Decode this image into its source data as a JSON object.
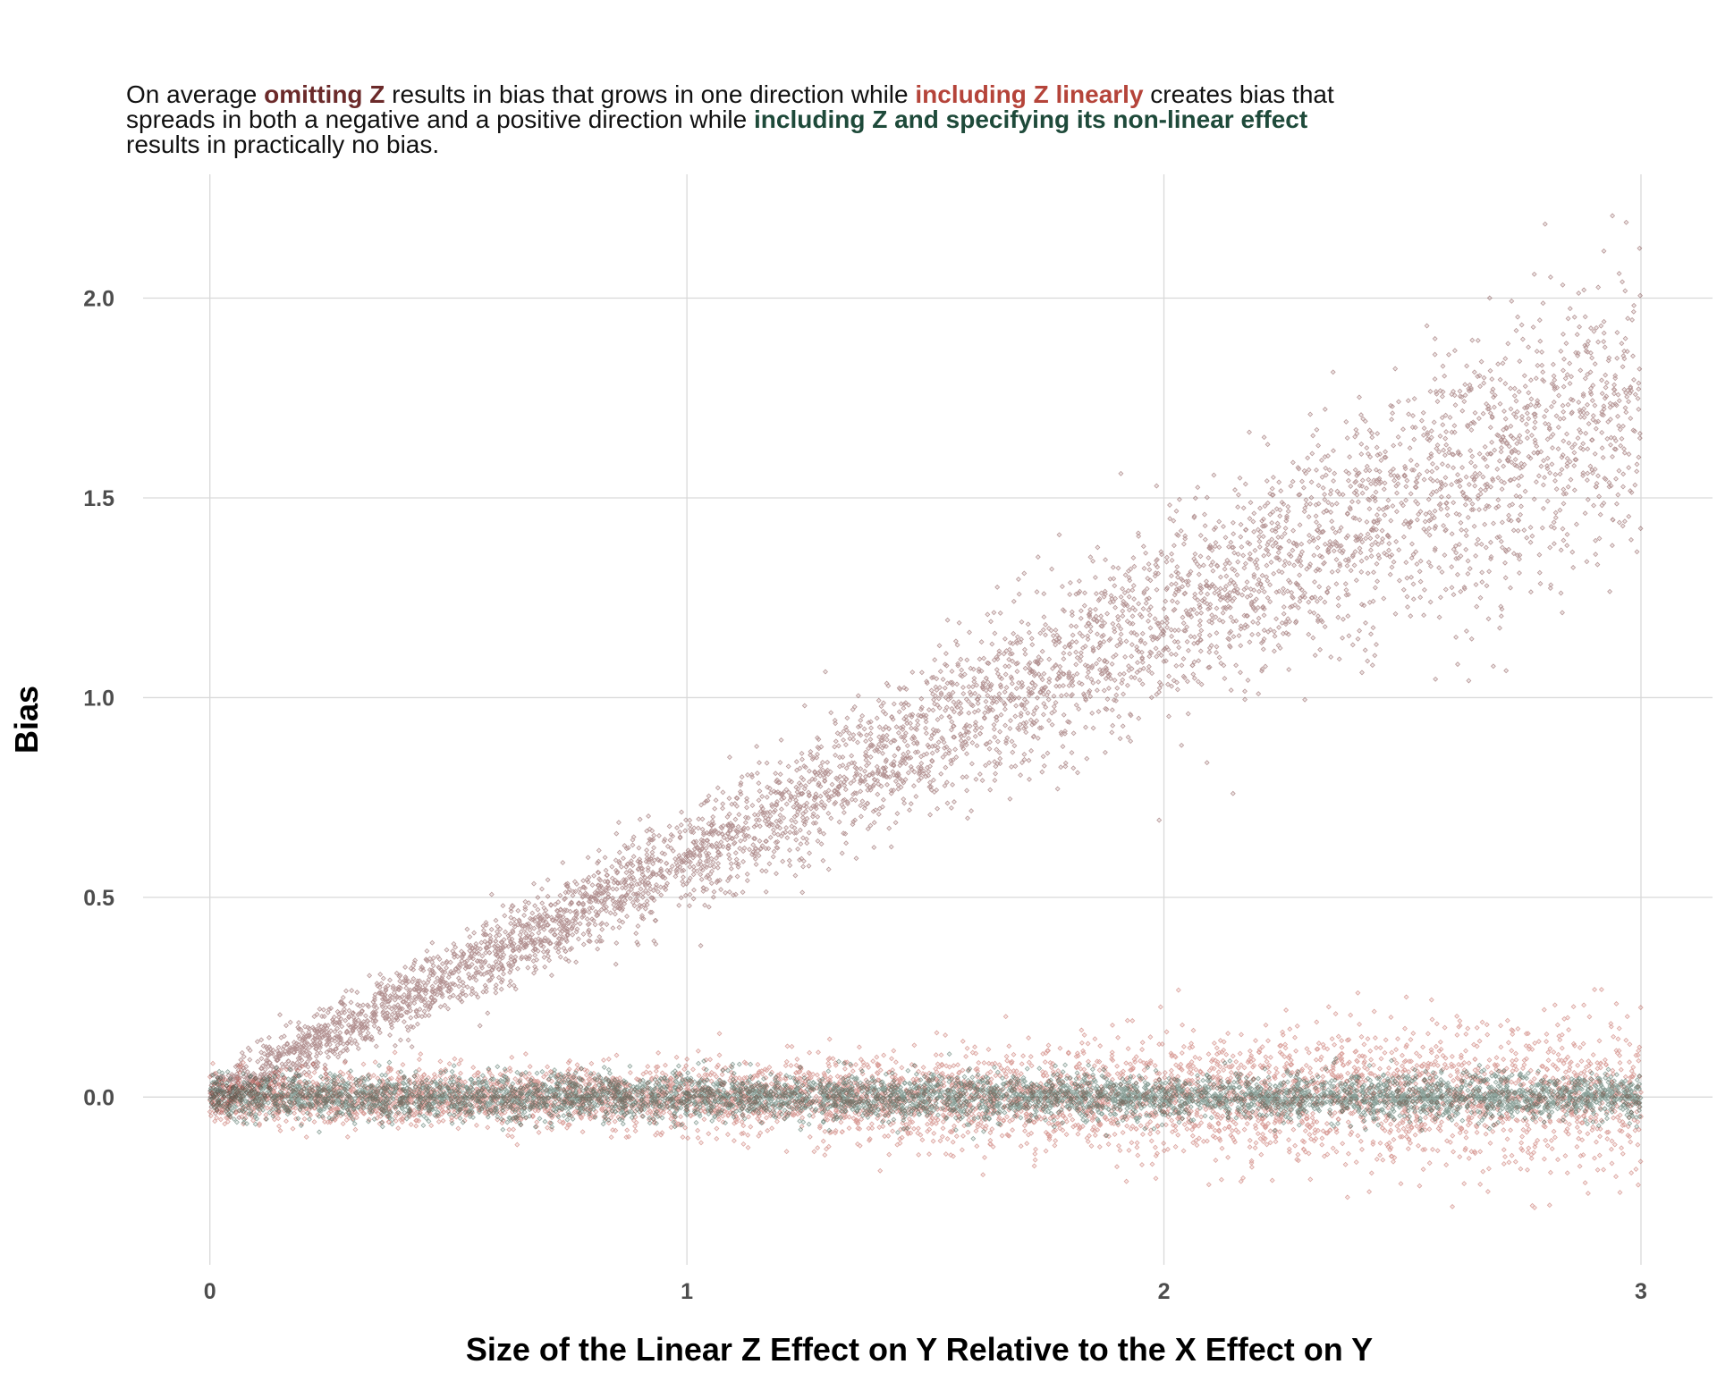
{
  "chart_data": {
    "type": "scatter",
    "subtitle_segments": [
      {
        "text": "On average ",
        "style": "plain"
      },
      {
        "text": "omitting Z",
        "style": "omit"
      },
      {
        "text": " results in bias that grows in one direction while ",
        "style": "plain"
      },
      {
        "text": "including Z linearly",
        "style": "linear"
      },
      {
        "text": " creates bias that spreads in both a negative and a positive direction while ",
        "style": "plain"
      },
      {
        "text": "including Z and specifying its non-linear effect",
        "style": "nonlinear"
      },
      {
        "text": " results in practically no bias.",
        "style": "plain"
      }
    ],
    "xlabel": "Size of the Linear Z Effect on Y Relative to the X Effect on Y",
    "ylabel": "Bias",
    "xlim": [
      -0.14,
      3.15
    ],
    "ylim": [
      -0.42,
      2.31
    ],
    "x_ticks": [
      0,
      1,
      2,
      3
    ],
    "x_tick_labels": [
      "0",
      "1",
      "2",
      "3"
    ],
    "y_ticks": [
      0.0,
      0.5,
      1.0,
      1.5,
      2.0
    ],
    "y_tick_labels": [
      "0.0",
      "0.5",
      "1.0",
      "1.5",
      "2.0"
    ],
    "grid": true,
    "legend": "none",
    "colors": {
      "omit": "#6b2a2a",
      "linear": "#b5443a",
      "nonlinear": "#1e4a3a",
      "text": "#111111",
      "tick": "#4d4d4d",
      "grid": "#d9d9d9"
    },
    "series": [
      {
        "key": "omit",
        "x_range": [
          0,
          3
        ],
        "y_trend": [
          [
            0,
            0
          ],
          [
            1,
            0.6
          ],
          [
            2,
            1.2
          ],
          [
            3,
            1.75
          ]
        ],
        "y_spread_sd": [
          [
            0,
            0.03
          ],
          [
            1,
            0.06
          ],
          [
            2,
            0.12
          ],
          [
            3,
            0.18
          ]
        ],
        "n_points": 5000
      },
      {
        "key": "linear",
        "x_range": [
          0,
          3
        ],
        "y_trend": [
          [
            0,
            0
          ],
          [
            3,
            0
          ]
        ],
        "y_spread_sd": [
          [
            0,
            0.03
          ],
          [
            1,
            0.04
          ],
          [
            2,
            0.07
          ],
          [
            3,
            0.1
          ]
        ],
        "n_points": 5000
      },
      {
        "key": "nonlinear",
        "x_range": [
          0,
          3
        ],
        "y_trend": [
          [
            0,
            0
          ],
          [
            3,
            0
          ]
        ],
        "y_spread_sd": [
          [
            0,
            0.028
          ],
          [
            3,
            0.028
          ]
        ],
        "n_points": 5000
      }
    ]
  }
}
